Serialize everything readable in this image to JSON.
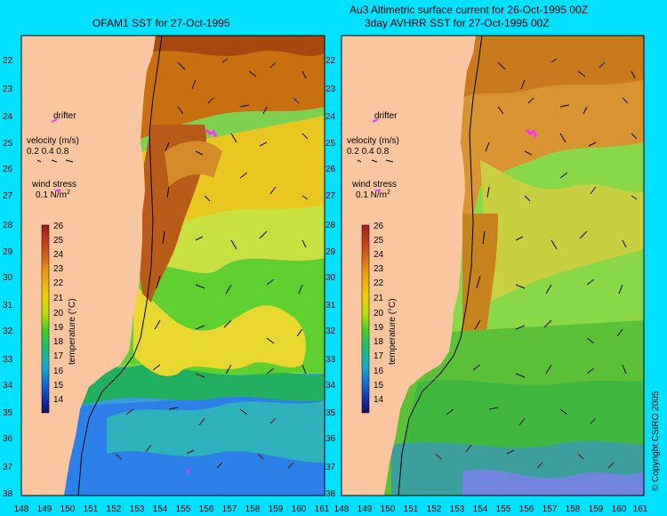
{
  "left_panel": {
    "title": "OFAM1 SST for 27-Oct-1995"
  },
  "right_panel": {
    "title_line1": "Au3 Altimetric surface current for 26-Oct-1995 00Z",
    "title_line2": "3day AVHRR SST for 27-Oct-1995 00Z"
  },
  "lat_labels": [
    "22",
    "23",
    "24",
    "25",
    "26",
    "27",
    "28",
    "29",
    "30",
    "31",
    "32",
    "33",
    "34",
    "35",
    "36",
    "37",
    "38"
  ],
  "lon_labels": [
    "148",
    "149",
    "150",
    "151",
    "152",
    "153",
    "154",
    "155",
    "156",
    "157",
    "158",
    "159",
    "160",
    "161"
  ],
  "legend": {
    "drifter": "drifter",
    "velocity": "velocity (m/s)",
    "velocity_scale": "0.2 0.4 0.8",
    "wind": "wind stress",
    "wind_scale": "0.1 N/m",
    "wind_sup": "2",
    "colorbar_title": "temperature (°C)",
    "colorbar_ticks": [
      "26",
      "25",
      "24",
      "23",
      "22",
      "21",
      "20",
      "19",
      "18",
      "17",
      "16",
      "15",
      "14"
    ]
  },
  "colors": {
    "background": "#00e0ff",
    "land": "#f9c6a0",
    "drifter": "#ff33ff"
  },
  "copyright": "© Copyright CSIRO 2005"
}
